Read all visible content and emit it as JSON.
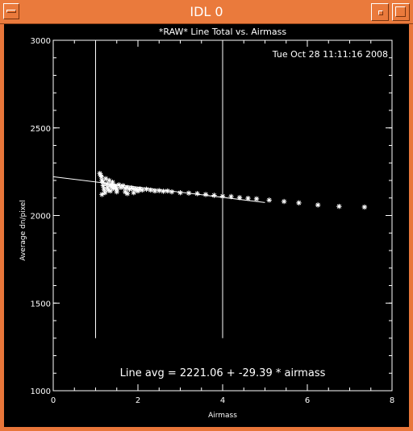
{
  "window": {
    "title": "IDL 0",
    "controls": {
      "menu": "window-menu-icon",
      "minimize": "minimize-icon",
      "maximize": "maximize-icon"
    },
    "frame_color": "#ea7a3c"
  },
  "chart_data": {
    "type": "scatter",
    "title": "*RAW* Line Total vs. Airmass",
    "timestamp": "Tue Oct 28 11:11:16 2008",
    "xlabel": "Airmass",
    "ylabel": "Average dn/pixel",
    "xlim": [
      0,
      8
    ],
    "ylim": [
      1000,
      3000
    ],
    "xticks": [
      "0",
      "2",
      "4",
      "6",
      "8"
    ],
    "yticks": [
      "1000",
      "1500",
      "2000",
      "2500",
      "3000"
    ],
    "annotation": "Line avg = 2221.06 + -29.39 * airmass",
    "fit": {
      "intercept": 2221.06,
      "slope": -29.39,
      "x_range": [
        0,
        5.0
      ]
    },
    "vertical_lines": [
      {
        "x": 1.0,
        "y_range": [
          1300,
          3000
        ]
      },
      {
        "x": 4.0,
        "y_range": [
          1300,
          3000
        ]
      }
    ],
    "marker": "asterisk",
    "points": [
      [
        1.1,
        2240
      ],
      [
        1.12,
        2230
      ],
      [
        1.14,
        2220
      ],
      [
        1.15,
        2200
      ],
      [
        1.17,
        2190
      ],
      [
        1.18,
        2170
      ],
      [
        1.2,
        2150
      ],
      [
        1.22,
        2130
      ],
      [
        1.24,
        2210
      ],
      [
        1.26,
        2180
      ],
      [
        1.28,
        2160
      ],
      [
        1.3,
        2145
      ],
      [
        1.32,
        2200
      ],
      [
        1.35,
        2175
      ],
      [
        1.38,
        2165
      ],
      [
        1.4,
        2190
      ],
      [
        1.42,
        2155
      ],
      [
        1.45,
        2170
      ],
      [
        1.48,
        2160
      ],
      [
        1.5,
        2150
      ],
      [
        1.55,
        2175
      ],
      [
        1.6,
        2160
      ],
      [
        1.65,
        2170
      ],
      [
        1.7,
        2155
      ],
      [
        1.75,
        2160
      ],
      [
        1.8,
        2150
      ],
      [
        1.85,
        2158
      ],
      [
        1.9,
        2152
      ],
      [
        1.95,
        2150
      ],
      [
        2.0,
        2148
      ],
      [
        2.05,
        2152
      ],
      [
        2.1,
        2145
      ],
      [
        2.2,
        2150
      ],
      [
        2.3,
        2145
      ],
      [
        2.4,
        2140
      ],
      [
        2.5,
        2142
      ],
      [
        2.6,
        2138
      ],
      [
        2.7,
        2140
      ],
      [
        2.8,
        2135
      ],
      [
        3.0,
        2130
      ],
      [
        3.2,
        2128
      ],
      [
        3.4,
        2125
      ],
      [
        3.6,
        2120
      ],
      [
        3.8,
        2115
      ],
      [
        4.0,
        2110
      ],
      [
        4.2,
        2108
      ],
      [
        4.4,
        2102
      ],
      [
        4.6,
        2098
      ],
      [
        4.8,
        2095
      ],
      [
        5.1,
        2088
      ],
      [
        5.45,
        2080
      ],
      [
        5.8,
        2072
      ],
      [
        6.25,
        2060
      ],
      [
        6.75,
        2052
      ],
      [
        7.35,
        2048
      ],
      [
        1.15,
        2120
      ],
      [
        1.35,
        2140
      ],
      [
        1.5,
        2135
      ],
      [
        1.7,
        2135
      ],
      [
        1.75,
        2125
      ],
      [
        1.9,
        2130
      ],
      [
        2.0,
        2140
      ]
    ]
  }
}
